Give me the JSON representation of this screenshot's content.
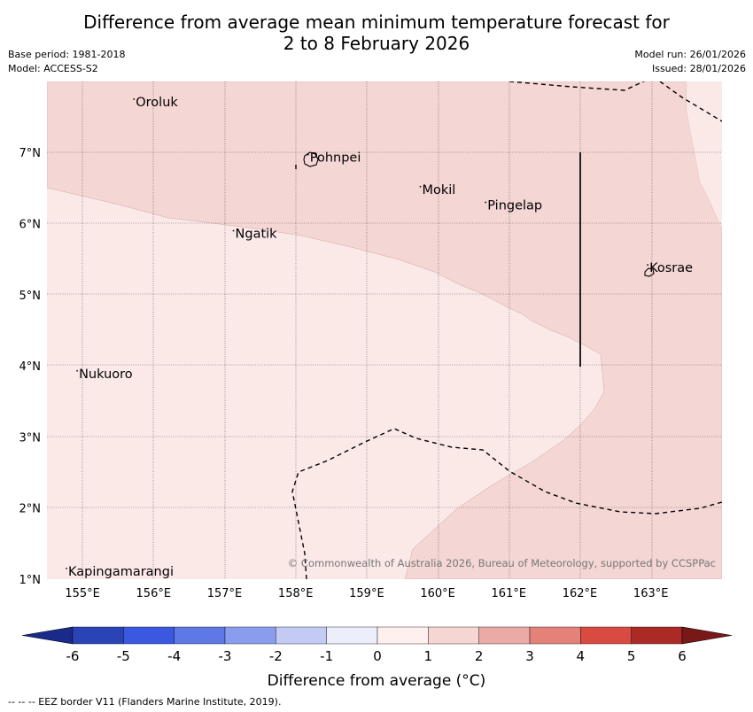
{
  "title": {
    "line1": "Difference from average mean minimum temperature forecast for",
    "line2": "2 to 8 February 2026"
  },
  "meta": {
    "base_period": "Base period: 1981-2018",
    "model": "Model: ACCESS-S2",
    "model_run": "Model run: 26/01/2026",
    "issued": "Issued: 28/01/2026"
  },
  "map": {
    "lat_labels": [
      "7°N",
      "6°N",
      "5°N",
      "4°N",
      "3°N",
      "2°N",
      "1°N"
    ],
    "lon_labels": [
      "155°E",
      "156°E",
      "157°E",
      "158°E",
      "159°E",
      "160°E",
      "161°E",
      "162°E",
      "163°E"
    ],
    "places": [
      {
        "name": "Oroluk",
        "lon": 155.75,
        "lat": 7.65
      },
      {
        "name": "Pohnpei",
        "lon": 158.2,
        "lat": 6.87
      },
      {
        "name": "Mokil",
        "lon": 159.78,
        "lat": 6.42
      },
      {
        "name": "Pingelap",
        "lon": 160.7,
        "lat": 6.2
      },
      {
        "name": "Ngatik",
        "lon": 157.15,
        "lat": 5.8
      },
      {
        "name": "Kosrae",
        "lon": 162.98,
        "lat": 5.32
      },
      {
        "name": "Nukuoro",
        "lon": 154.95,
        "lat": 3.83
      },
      {
        "name": "Kapingamarangi",
        "lon": 154.8,
        "lat": 1.05
      }
    ],
    "copyright": "© Commonwealth of Australia 2026, Bureau of Meteorology, supported by CCSPPac",
    "colors": {
      "band_0_1": "#fbe9e8",
      "band_1_2": "#f4d6d4"
    }
  },
  "legend": {
    "ticks": [
      "-6",
      "-5",
      "-4",
      "-3",
      "-2",
      "-1",
      "0",
      "1",
      "2",
      "3",
      "4",
      "5",
      "6"
    ],
    "colors": [
      "#1a2a8a",
      "#2a44b8",
      "#3a58e0",
      "#5e78e6",
      "#8a9ced",
      "#c3cbf4",
      "#eceefb",
      "#fdf0ee",
      "#f5d6d3",
      "#ebaaa5",
      "#e48279",
      "#d94b42",
      "#ab2a26",
      "#7a1818"
    ],
    "label": "Difference from average (°C)"
  },
  "footnote": "-- -- -- EEZ border V11 (Flanders Marine Institute, 2019)."
}
